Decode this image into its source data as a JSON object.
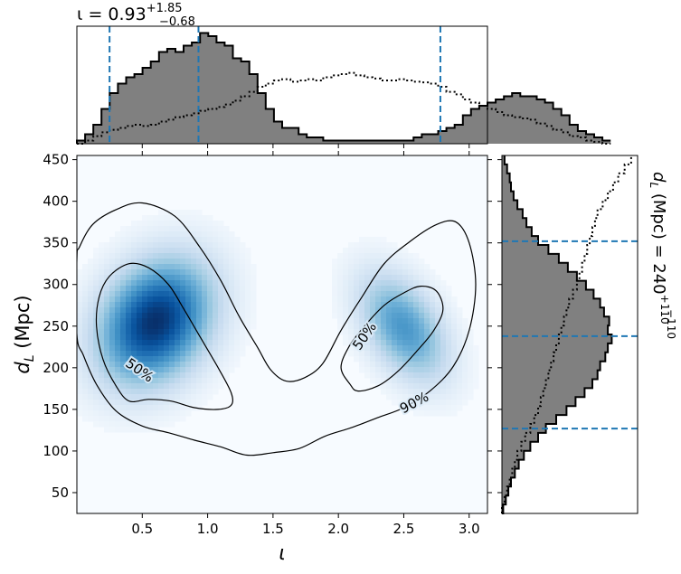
{
  "chart_data": [
    {
      "type": "heatmap",
      "panel": "joint",
      "xlabel": "ι",
      "ylabel_base": "d",
      "ylabel_sub": "L",
      "ylabel_unit": "(Mpc)",
      "xlim": [
        0.0,
        3.14
      ],
      "ylim": [
        25,
        455
      ],
      "xticks": [
        0.5,
        1.0,
        1.5,
        2.0,
        2.5,
        3.0
      ],
      "xtick_labels": [
        "0.5",
        "1.0",
        "1.5",
        "2.0",
        "2.5",
        "3.0"
      ],
      "yticks": [
        50,
        100,
        150,
        200,
        250,
        300,
        350,
        400,
        450
      ],
      "ytick_labels": [
        "50",
        "100",
        "150",
        "200",
        "250",
        "300",
        "350",
        "400",
        "450"
      ],
      "colormap": "Blues",
      "density_peaks": [
        {
          "x": 0.6,
          "y": 255,
          "sx": 0.28,
          "sy": 48,
          "rho": 0.25,
          "amp": 1.0
        },
        {
          "x": 2.5,
          "y": 248,
          "sx": 0.22,
          "sy": 42,
          "rho": -0.45,
          "amp": 0.55
        }
      ],
      "contours": [
        {
          "label": "50%",
          "label_at": [
            0.48,
            197
          ],
          "label_rotation": 35,
          "points": [
            [
              0.4,
              160
            ],
            [
              0.3,
              178
            ],
            [
              0.2,
              210
            ],
            [
              0.15,
              250
            ],
            [
              0.17,
              285
            ],
            [
              0.25,
              310
            ],
            [
              0.4,
              325
            ],
            [
              0.55,
              320
            ],
            [
              0.7,
              300
            ],
            [
              0.82,
              270
            ],
            [
              0.95,
              235
            ],
            [
              1.08,
              200
            ],
            [
              1.18,
              170
            ],
            [
              1.18,
              155
            ],
            [
              1.08,
              150
            ],
            [
              0.9,
              152
            ],
            [
              0.72,
              160
            ],
            [
              0.55,
              162
            ]
          ]
        },
        {
          "label": "50%",
          "label_at": [
            2.2,
            238
          ],
          "label_rotation": -55,
          "points": [
            [
              2.09,
              180
            ],
            [
              2.02,
              200
            ],
            [
              2.08,
              225
            ],
            [
              2.2,
              250
            ],
            [
              2.35,
              275
            ],
            [
              2.5,
              290
            ],
            [
              2.63,
              298
            ],
            [
              2.75,
              292
            ],
            [
              2.8,
              270
            ],
            [
              2.73,
              245
            ],
            [
              2.6,
              220
            ],
            [
              2.45,
              195
            ],
            [
              2.3,
              178
            ],
            [
              2.15,
              172
            ]
          ]
        },
        {
          "label": "90%",
          "label_at": [
            2.58,
            158
          ],
          "label_rotation": -28,
          "points": [
            [
              0.0,
              240
            ],
            [
              0.05,
              215
            ],
            [
              0.15,
              180
            ],
            [
              0.3,
              148
            ],
            [
              0.5,
              130
            ],
            [
              0.7,
              122
            ],
            [
              0.9,
              113
            ],
            [
              1.1,
              105
            ],
            [
              1.3,
              95
            ],
            [
              1.5,
              98
            ],
            [
              1.7,
              103
            ],
            [
              1.9,
              118
            ],
            [
              2.1,
              128
            ],
            [
              2.3,
              140
            ],
            [
              2.5,
              152
            ],
            [
              2.7,
              172
            ],
            [
              2.88,
              202
            ],
            [
              3.0,
              245
            ],
            [
              3.05,
              300
            ],
            [
              3.0,
              350
            ],
            [
              2.9,
              375
            ],
            [
              2.75,
              372
            ],
            [
              2.55,
              352
            ],
            [
              2.35,
              325
            ],
            [
              2.18,
              285
            ],
            [
              2.02,
              245
            ],
            [
              1.88,
              205
            ],
            [
              1.74,
              188
            ],
            [
              1.6,
              184
            ],
            [
              1.48,
              198
            ],
            [
              1.38,
              225
            ],
            [
              1.24,
              262
            ],
            [
              1.1,
              305
            ],
            [
              0.94,
              345
            ],
            [
              0.75,
              382
            ],
            [
              0.5,
              398
            ],
            [
              0.3,
              390
            ],
            [
              0.12,
              372
            ],
            [
              0.02,
              345
            ],
            [
              0.0,
              330
            ]
          ]
        }
      ]
    },
    {
      "type": "histogram",
      "panel": "marginal-top",
      "title_base": "ι = 0.93",
      "title_sup": "+1.85",
      "title_sub": "−0.68",
      "xlim": [
        0.0,
        3.14
      ],
      "bin_start": 0.0,
      "bin_width": 0.0628,
      "posterior": [
        0.05,
        0.15,
        0.3,
        0.55,
        0.8,
        0.95,
        1.05,
        1.1,
        1.2,
        1.3,
        1.45,
        1.5,
        1.45,
        1.55,
        1.6,
        1.75,
        1.7,
        1.6,
        1.55,
        1.35,
        1.3,
        1.1,
        0.8,
        0.55,
        0.35,
        0.25,
        0.25,
        0.15,
        0.1,
        0.1,
        0.05,
        0.05,
        0.05,
        0.05,
        0.05,
        0.05,
        0.05,
        0.05,
        0.05,
        0.05,
        0.05,
        0.1,
        0.15,
        0.15,
        0.2,
        0.25,
        0.3,
        0.45,
        0.55,
        0.6,
        0.65,
        0.7,
        0.75,
        0.8,
        0.75,
        0.75,
        0.7,
        0.65,
        0.55,
        0.45,
        0.3,
        0.2,
        0.15,
        0.1,
        0.05
      ],
      "prior": [
        0.0,
        0.05,
        0.12,
        0.18,
        0.22,
        0.25,
        0.28,
        0.3,
        0.28,
        0.3,
        0.35,
        0.38,
        0.42,
        0.45,
        0.48,
        0.52,
        0.55,
        0.58,
        0.62,
        0.68,
        0.75,
        0.82,
        0.9,
        0.95,
        1.0,
        1.02,
        0.98,
        1.0,
        1.02,
        1.0,
        1.05,
        1.08,
        1.1,
        1.12,
        1.08,
        1.05,
        1.03,
        1.0,
        1.0,
        1.02,
        1.0,
        0.98,
        0.97,
        0.95,
        0.9,
        0.82,
        0.78,
        0.7,
        0.65,
        0.6,
        0.55,
        0.5,
        0.45,
        0.42,
        0.4,
        0.38,
        0.32,
        0.28,
        0.22,
        0.18,
        0.12,
        0.1,
        0.05,
        0.03,
        0.0
      ],
      "ymax": 1.8,
      "quantiles": [
        0.25,
        0.93,
        2.78
      ]
    },
    {
      "type": "histogram",
      "panel": "marginal-right",
      "side_label_base": "d",
      "side_label_sub": "L",
      "side_label_rest": " (Mpc) = 240",
      "side_label_sup": "+110",
      "side_label_subscript": "−110",
      "ylim": [
        25,
        455
      ],
      "bin_start": 25,
      "bin_width": 10.75,
      "posterior": [
        0.01,
        0.03,
        0.05,
        0.07,
        0.1,
        0.13,
        0.17,
        0.22,
        0.28,
        0.34,
        0.42,
        0.5,
        0.57,
        0.64,
        0.7,
        0.74,
        0.76,
        0.8,
        0.82,
        0.85,
        0.82,
        0.83,
        0.79,
        0.76,
        0.71,
        0.65,
        0.58,
        0.51,
        0.44,
        0.36,
        0.28,
        0.23,
        0.19,
        0.16,
        0.12,
        0.09,
        0.07,
        0.06,
        0.04,
        0.02
      ],
      "prior": [
        0.0,
        0.02,
        0.04,
        0.06,
        0.08,
        0.1,
        0.12,
        0.15,
        0.18,
        0.22,
        0.25,
        0.28,
        0.3,
        0.32,
        0.34,
        0.36,
        0.38,
        0.4,
        0.42,
        0.44,
        0.46,
        0.48,
        0.5,
        0.52,
        0.55,
        0.58,
        0.6,
        0.62,
        0.64,
        0.66,
        0.68,
        0.7,
        0.72,
        0.74,
        0.78,
        0.82,
        0.86,
        0.9,
        0.95,
        1.0
      ],
      "xmax": 1.05,
      "quantiles": [
        127,
        238,
        352
      ]
    }
  ]
}
